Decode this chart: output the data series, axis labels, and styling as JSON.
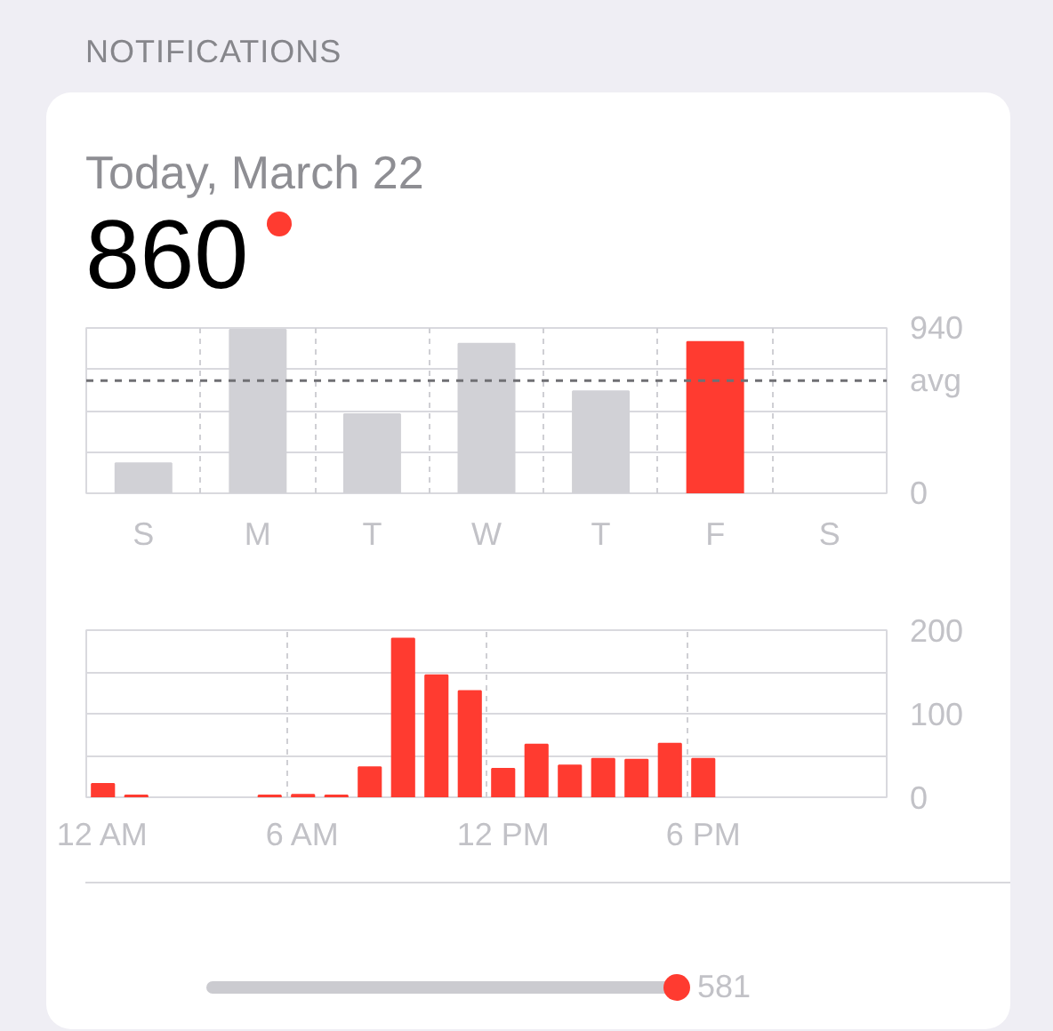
{
  "chart_data": [
    {
      "type": "bar",
      "title": "NOTIFICATIONS",
      "subtitle": "Today, March 22",
      "annotations": [
        "860"
      ],
      "categories": [
        "S",
        "M",
        "T",
        "W",
        "T",
        "F",
        "S"
      ],
      "values": [
        170,
        930,
        450,
        850,
        580,
        860,
        null
      ],
      "colors": [
        "#d1d1d6",
        "#d1d1d6",
        "#d1d1d6",
        "#d1d1d6",
        "#d1d1d6",
        "#ff3b30",
        "#d1d1d6"
      ],
      "ylim": [
        0,
        940
      ],
      "yticks": [
        0,
        {
          "value": 235,
          "label": null
        },
        {
          "value": 470,
          "label": null
        },
        {
          "value": 705,
          "label": null
        },
        940
      ],
      "ref_lines": [
        {
          "axis": "y",
          "value": 640,
          "label": "avg",
          "line_style": "dashed",
          "color": "#707074"
        }
      ],
      "grid": true
    },
    {
      "type": "bar",
      "categories": [
        "12 AM",
        null,
        null,
        null,
        null,
        null,
        "6 AM",
        null,
        null,
        null,
        null,
        null,
        "12 PM",
        null,
        null,
        null,
        null,
        null,
        "6 PM",
        null,
        null,
        null,
        null,
        null
      ],
      "series": [
        {
          "color": "#ff3b30",
          "values": [
            16,
            2,
            null,
            null,
            null,
            2,
            3,
            2,
            36,
            190,
            146,
            127,
            34,
            63,
            38,
            46,
            45,
            64,
            46,
            null,
            null,
            null,
            null,
            null
          ]
        }
      ],
      "ylim": [
        0,
        200
      ],
      "yticks": [
        0,
        {
          "value": 50,
          "label": null
        },
        100,
        {
          "value": 150,
          "label": null
        },
        200
      ],
      "grid": true
    },
    {
      "type": "other",
      "annotations": [
        "581"
      ]
    }
  ]
}
